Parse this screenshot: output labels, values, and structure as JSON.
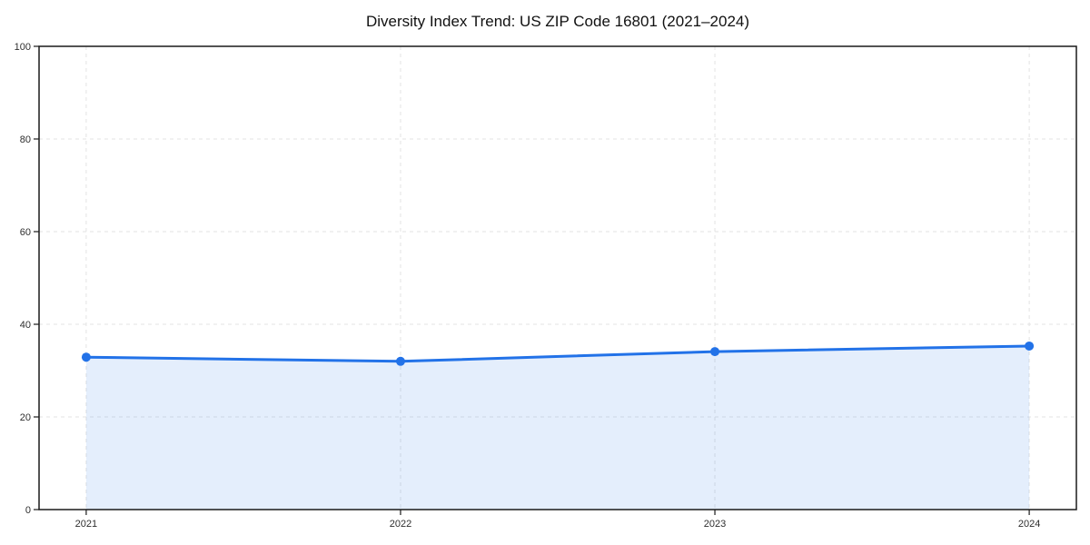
{
  "chart_data": {
    "type": "line",
    "title": "Diversity Index Trend: US ZIP Code 16801 (2021–2024)",
    "x": [
      2021,
      2022,
      2023,
      2024
    ],
    "x_tick_labels": [
      "2021",
      "2022",
      "2023",
      "2024"
    ],
    "series": [
      {
        "name": "Diversity Index",
        "values": [
          32.9,
          32.0,
          34.1,
          35.3
        ]
      }
    ],
    "xlabel": "",
    "ylabel": "",
    "ylim": [
      0,
      100
    ],
    "y_ticks": [
      0,
      20,
      40,
      60,
      80,
      100
    ],
    "x_margin_fraction": 0.05,
    "grid": true,
    "grid_style": "dashed",
    "legend": "none",
    "area_fill": true,
    "marker": "circle",
    "colors": {
      "line": "#2272e8",
      "marker": "#2272e8",
      "area_fill": "#2272e8",
      "area_fill_opacity": 0.12,
      "gridline": "#e3e3e3",
      "axis": "#1a1a1a",
      "tick_label": "#2e2e2e",
      "title": "#111111",
      "background": "#ffffff"
    }
  }
}
